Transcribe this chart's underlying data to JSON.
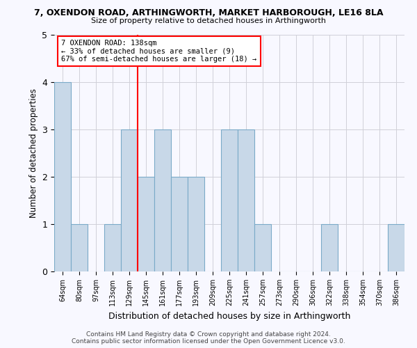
{
  "title1": "7, OXENDON ROAD, ARTHINGWORTH, MARKET HARBOROUGH, LE16 8LA",
  "title2": "Size of property relative to detached houses in Arthingworth",
  "xlabel": "Distribution of detached houses by size in Arthingworth",
  "ylabel": "Number of detached properties",
  "categories": [
    "64sqm",
    "80sqm",
    "97sqm",
    "113sqm",
    "129sqm",
    "145sqm",
    "161sqm",
    "177sqm",
    "193sqm",
    "209sqm",
    "225sqm",
    "241sqm",
    "257sqm",
    "273sqm",
    "290sqm",
    "306sqm",
    "322sqm",
    "338sqm",
    "354sqm",
    "370sqm",
    "386sqm"
  ],
  "values": [
    4,
    1,
    0,
    1,
    3,
    2,
    3,
    2,
    2,
    0,
    3,
    3,
    1,
    0,
    0,
    0,
    1,
    0,
    0,
    0,
    1
  ],
  "bar_color": "#c8d8e8",
  "bar_edge_color": "#7aaac8",
  "ylim": [
    0,
    5
  ],
  "yticks": [
    0,
    1,
    2,
    3,
    4,
    5
  ],
  "red_line_index": 4.5,
  "annotation_line1": "7 OXENDON ROAD: 138sqm",
  "annotation_line2": "← 33% of detached houses are smaller (9)",
  "annotation_line3": "67% of semi-detached houses are larger (18) →",
  "footer1": "Contains HM Land Registry data © Crown copyright and database right 2024.",
  "footer2": "Contains public sector information licensed under the Open Government Licence v3.0.",
  "bg_color": "#f8f8ff",
  "grid_color": "#d0d0d8"
}
